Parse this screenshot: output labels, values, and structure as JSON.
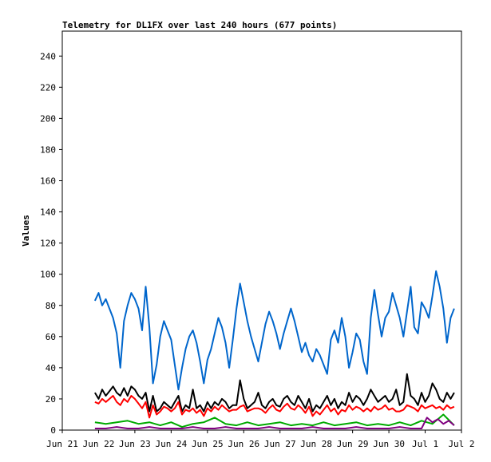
{
  "chart_data": {
    "type": "line",
    "title": "Telemetry for DL1FX over last 240 hours (677 points)",
    "xlabel": "",
    "ylabel": "Values",
    "xlim": [
      "Jun 21",
      "Jul 2"
    ],
    "ylim": [
      0,
      256
    ],
    "x_ticks": [
      "Jun 21",
      "Jun 22",
      "Jun 23",
      "Jun 24",
      "Jun 25",
      "Jun 26",
      "Jun 27",
      "Jun 28",
      "Jun 29",
      "Jun 30",
      "Jul 1",
      "Jul 2"
    ],
    "y_ticks": [
      0,
      20,
      40,
      60,
      80,
      100,
      120,
      140,
      160,
      180,
      200,
      220,
      240
    ],
    "grid": false,
    "legend": "none",
    "x_unit": "days since Jun 21 00:00",
    "series": [
      {
        "color": "#0066cc",
        "x": [
          0.9,
          1.0,
          1.1,
          1.2,
          1.3,
          1.4,
          1.5,
          1.6,
          1.7,
          1.8,
          1.9,
          2.0,
          2.1,
          2.2,
          2.3,
          2.4,
          2.5,
          2.6,
          2.7,
          2.8,
          2.9,
          3.0,
          3.1,
          3.2,
          3.3,
          3.4,
          3.5,
          3.6,
          3.7,
          3.8,
          3.9,
          4.0,
          4.1,
          4.2,
          4.3,
          4.4,
          4.5,
          4.6,
          4.7,
          4.8,
          4.9,
          5.0,
          5.1,
          5.2,
          5.3,
          5.4,
          5.5,
          5.6,
          5.7,
          5.8,
          5.9,
          6.0,
          6.1,
          6.2,
          6.3,
          6.4,
          6.5,
          6.6,
          6.7,
          6.8,
          6.9,
          7.0,
          7.1,
          7.2,
          7.3,
          7.4,
          7.5,
          7.6,
          7.7,
          7.8,
          7.9,
          8.0,
          8.1,
          8.2,
          8.3,
          8.4,
          8.5,
          8.6,
          8.7,
          8.8,
          8.9,
          9.0,
          9.1,
          9.2,
          9.3,
          9.4,
          9.5,
          9.6,
          9.7,
          9.8,
          9.9,
          10.0,
          10.1,
          10.2,
          10.3,
          10.4,
          10.5,
          10.6,
          10.7,
          10.8
        ],
        "values": [
          83,
          88,
          80,
          84,
          78,
          72,
          62,
          40,
          70,
          80,
          88,
          84,
          78,
          64,
          92,
          66,
          30,
          42,
          60,
          70,
          64,
          58,
          42,
          26,
          40,
          52,
          60,
          64,
          56,
          44,
          30,
          45,
          52,
          62,
          72,
          66,
          56,
          40,
          58,
          78,
          94,
          82,
          70,
          60,
          52,
          44,
          56,
          68,
          76,
          70,
          62,
          52,
          62,
          70,
          78,
          70,
          60,
          50,
          56,
          48,
          44,
          52,
          48,
          42,
          36,
          58,
          64,
          56,
          72,
          60,
          40,
          50,
          62,
          58,
          44,
          36,
          72,
          90,
          74,
          60,
          72,
          76,
          88,
          80,
          72,
          60,
          76,
          92,
          66,
          62,
          82,
          78,
          72,
          86,
          102,
          92,
          78,
          56,
          72,
          78
        ]
      },
      {
        "color": "#000000",
        "x": [
          0.9,
          1.0,
          1.1,
          1.2,
          1.3,
          1.4,
          1.5,
          1.6,
          1.7,
          1.8,
          1.9,
          2.0,
          2.1,
          2.2,
          2.3,
          2.4,
          2.5,
          2.6,
          2.7,
          2.8,
          2.9,
          3.0,
          3.1,
          3.2,
          3.3,
          3.4,
          3.5,
          3.6,
          3.7,
          3.8,
          3.9,
          4.0,
          4.1,
          4.2,
          4.3,
          4.4,
          4.5,
          4.6,
          4.7,
          4.8,
          4.9,
          5.0,
          5.1,
          5.2,
          5.3,
          5.4,
          5.5,
          5.6,
          5.7,
          5.8,
          5.9,
          6.0,
          6.1,
          6.2,
          6.3,
          6.4,
          6.5,
          6.6,
          6.7,
          6.8,
          6.9,
          7.0,
          7.1,
          7.2,
          7.3,
          7.4,
          7.5,
          7.6,
          7.7,
          7.8,
          7.9,
          8.0,
          8.1,
          8.2,
          8.3,
          8.4,
          8.5,
          8.6,
          8.7,
          8.8,
          8.9,
          9.0,
          9.1,
          9.2,
          9.3,
          9.4,
          9.5,
          9.6,
          9.7,
          9.8,
          9.9,
          10.0,
          10.1,
          10.2,
          10.3,
          10.4,
          10.5,
          10.6,
          10.7,
          10.8
        ],
        "values": [
          24,
          20,
          26,
          22,
          25,
          28,
          24,
          22,
          27,
          22,
          28,
          26,
          22,
          20,
          24,
          12,
          22,
          12,
          14,
          18,
          16,
          14,
          18,
          22,
          12,
          16,
          14,
          26,
          14,
          16,
          12,
          18,
          14,
          18,
          16,
          20,
          18,
          14,
          16,
          16,
          32,
          20,
          14,
          16,
          18,
          24,
          16,
          14,
          18,
          20,
          16,
          15,
          20,
          22,
          18,
          16,
          22,
          18,
          14,
          20,
          12,
          16,
          14,
          18,
          22,
          16,
          20,
          14,
          18,
          16,
          24,
          18,
          22,
          20,
          16,
          20,
          26,
          22,
          18,
          20,
          22,
          18,
          20,
          26,
          16,
          18,
          36,
          22,
          20,
          16,
          24,
          18,
          22,
          30,
          26,
          20,
          18,
          24,
          20,
          24
        ]
      },
      {
        "color": "#ff0000",
        "x": [
          0.9,
          1.0,
          1.1,
          1.2,
          1.3,
          1.4,
          1.5,
          1.6,
          1.7,
          1.8,
          1.9,
          2.0,
          2.1,
          2.2,
          2.3,
          2.4,
          2.5,
          2.6,
          2.7,
          2.8,
          2.9,
          3.0,
          3.1,
          3.2,
          3.3,
          3.4,
          3.5,
          3.6,
          3.7,
          3.8,
          3.9,
          4.0,
          4.1,
          4.2,
          4.3,
          4.4,
          4.5,
          4.6,
          4.7,
          4.8,
          4.9,
          5.0,
          5.1,
          5.2,
          5.3,
          5.4,
          5.5,
          5.6,
          5.7,
          5.8,
          5.9,
          6.0,
          6.1,
          6.2,
          6.3,
          6.4,
          6.5,
          6.6,
          6.7,
          6.8,
          6.9,
          7.0,
          7.1,
          7.2,
          7.3,
          7.4,
          7.5,
          7.6,
          7.7,
          7.8,
          7.9,
          8.0,
          8.1,
          8.2,
          8.3,
          8.4,
          8.5,
          8.6,
          8.7,
          8.8,
          8.9,
          9.0,
          9.1,
          9.2,
          9.3,
          9.4,
          9.5,
          9.6,
          9.7,
          9.8,
          9.9,
          10.0,
          10.1,
          10.2,
          10.3,
          10.4,
          10.5,
          10.6,
          10.7,
          10.8
        ],
        "values": [
          18,
          17,
          20,
          18,
          20,
          22,
          18,
          16,
          20,
          18,
          22,
          20,
          17,
          14,
          18,
          8,
          16,
          10,
          12,
          15,
          14,
          12,
          14,
          18,
          10,
          13,
          12,
          14,
          11,
          13,
          9,
          14,
          12,
          15,
          13,
          16,
          14,
          12,
          13,
          13,
          15,
          16,
          12,
          13,
          14,
          14,
          13,
          11,
          14,
          16,
          13,
          12,
          15,
          17,
          14,
          13,
          16,
          14,
          11,
          15,
          9,
          12,
          10,
          13,
          16,
          12,
          14,
          10,
          13,
          12,
          16,
          13,
          15,
          14,
          12,
          14,
          12,
          15,
          13,
          14,
          16,
          13,
          14,
          12,
          12,
          13,
          16,
          15,
          14,
          12,
          16,
          14,
          15,
          16,
          14,
          15,
          13,
          16,
          14,
          15
        ]
      },
      {
        "color": "#00aa00",
        "x": [
          0.9,
          1.2,
          1.5,
          1.8,
          2.1,
          2.4,
          2.7,
          3.0,
          3.3,
          3.6,
          3.9,
          4.2,
          4.5,
          4.8,
          5.1,
          5.4,
          5.7,
          6.0,
          6.3,
          6.6,
          6.9,
          7.2,
          7.5,
          7.8,
          8.1,
          8.4,
          8.7,
          9.0,
          9.3,
          9.6,
          9.9,
          10.2,
          10.5,
          10.8
        ],
        "values": [
          5,
          4,
          5,
          6,
          4,
          5,
          3,
          5,
          2,
          4,
          5,
          8,
          4,
          3,
          5,
          3,
          4,
          5,
          3,
          4,
          3,
          5,
          3,
          4,
          5,
          3,
          4,
          3,
          5,
          3,
          6,
          4,
          10,
          3
        ]
      },
      {
        "color": "#800080",
        "x": [
          0.9,
          1.2,
          1.5,
          1.8,
          2.1,
          2.4,
          2.7,
          3.0,
          3.3,
          3.6,
          3.9,
          4.2,
          4.5,
          4.8,
          5.1,
          5.4,
          5.7,
          6.0,
          6.3,
          6.6,
          6.9,
          7.2,
          7.5,
          7.8,
          8.1,
          8.4,
          8.7,
          9.0,
          9.3,
          9.6,
          9.9,
          10.05,
          10.2,
          10.35,
          10.5,
          10.65,
          10.8
        ],
        "values": [
          1,
          1,
          2,
          1,
          1,
          2,
          1,
          1,
          1,
          2,
          1,
          1,
          2,
          1,
          1,
          1,
          2,
          1,
          1,
          1,
          2,
          1,
          1,
          1,
          2,
          1,
          1,
          1,
          2,
          1,
          1,
          8,
          5,
          7,
          4,
          6,
          3
        ]
      }
    ]
  }
}
